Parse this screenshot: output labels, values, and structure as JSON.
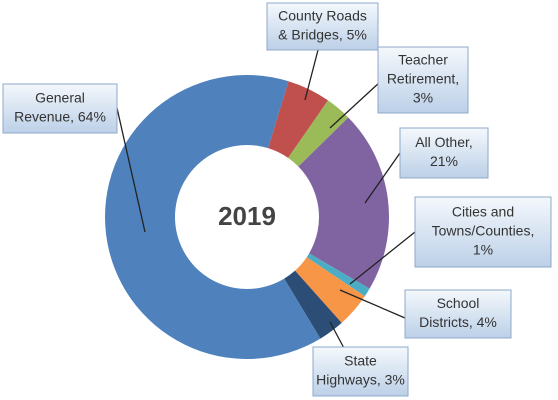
{
  "chart_data": {
    "type": "donut",
    "title": "2019",
    "labels": [
      [
        "County Roads",
        "& Bridges, 5%"
      ],
      [
        "Teacher",
        "Retirement,",
        "3%"
      ],
      [
        "All Other,",
        "21%"
      ],
      [
        "Cities and",
        "Towns/Counties,",
        "1%"
      ],
      [
        "School",
        "Districts, 4%"
      ],
      [
        "State",
        "Highways, 3%"
      ],
      [
        "General",
        "Revenue, 64%"
      ]
    ],
    "values": [
      5,
      3,
      21,
      1,
      4,
      3,
      64
    ],
    "colors": [
      "#c0504d",
      "#9bbb59",
      "#8064a2",
      "#4bacc6",
      "#f79646",
      "#2c4d75",
      "#4f81bd"
    ]
  }
}
